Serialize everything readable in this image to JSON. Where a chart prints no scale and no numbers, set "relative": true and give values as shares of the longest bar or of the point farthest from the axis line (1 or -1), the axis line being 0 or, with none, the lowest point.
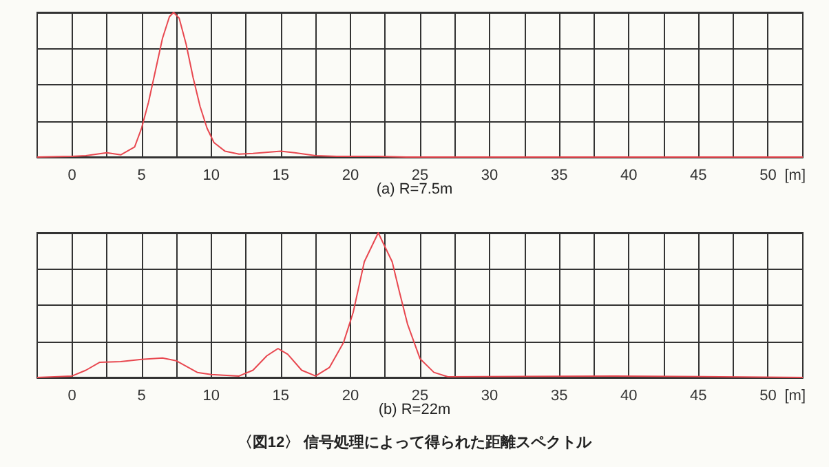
{
  "chart_data": [
    {
      "type": "line",
      "title": "(a) R=7.5m",
      "xlabel": "[m]",
      "relative": true,
      "grid": true,
      "marker": "none",
      "line_style": "solid",
      "xlim": [
        -2.5,
        52.5
      ],
      "xticks": [
        0,
        {
          "value": 2.5,
          "label": null
        },
        5,
        {
          "value": 7.5,
          "label": null
        },
        10,
        {
          "value": 12.5,
          "label": null
        },
        15,
        {
          "value": 17.5,
          "label": null
        },
        20,
        {
          "value": 22.5,
          "label": null
        },
        25,
        {
          "value": 27.5,
          "label": null
        },
        30,
        {
          "value": 32.5,
          "label": null
        },
        35,
        {
          "value": 37.5,
          "label": null
        },
        40,
        {
          "value": 42.5,
          "label": null
        },
        45,
        {
          "value": 47.5,
          "label": null
        },
        50
      ],
      "series": [
        {
          "color": "#e8474f",
          "x": [
            -2.5,
            0,
            1,
            2.5,
            3.5,
            4.5,
            5,
            5.5,
            6,
            6.5,
            7,
            7.3,
            7.7,
            8.2,
            8.7,
            9.2,
            9.7,
            10.2,
            11,
            12,
            13,
            15,
            16,
            17.5,
            19,
            22,
            24,
            52.5
          ],
          "values": [
            0,
            0.005,
            0.01,
            0.03,
            0.015,
            0.07,
            0.2,
            0.38,
            0.6,
            0.82,
            0.97,
            1,
            0.96,
            0.78,
            0.55,
            0.35,
            0.2,
            0.1,
            0.04,
            0.02,
            0.025,
            0.04,
            0.03,
            0.01,
            0.005,
            0.005,
            0,
            0
          ]
        }
      ]
    },
    {
      "type": "line",
      "title": "(b) R=22m",
      "xlabel": "[m]",
      "relative": true,
      "grid": true,
      "marker": "none",
      "line_style": "solid",
      "xlim": [
        -2.5,
        52.5
      ],
      "xticks": [
        0,
        {
          "value": 2.5,
          "label": null
        },
        5,
        {
          "value": 7.5,
          "label": null
        },
        10,
        {
          "value": 12.5,
          "label": null
        },
        15,
        {
          "value": 17.5,
          "label": null
        },
        20,
        {
          "value": 22.5,
          "label": null
        },
        25,
        {
          "value": 27.5,
          "label": null
        },
        30,
        {
          "value": 32.5,
          "label": null
        },
        35,
        {
          "value": 37.5,
          "label": null
        },
        40,
        {
          "value": 42.5,
          "label": null
        },
        45,
        {
          "value": 47.5,
          "label": null
        },
        50
      ],
      "annotations": [
        "〈図12〉 信号処理によって得られた距離スペクトル"
      ],
      "series": [
        {
          "color": "#e8474f",
          "x": [
            -2.5,
            0,
            1,
            2,
            3.5,
            5,
            6.5,
            7.5,
            9,
            10,
            12,
            13,
            14,
            14.8,
            15.5,
            16.5,
            17.5,
            18.5,
            19.5,
            20.2,
            21,
            22,
            23,
            23.5,
            24.1,
            25,
            26,
            27,
            39,
            52.5
          ],
          "values": [
            0,
            0.01,
            0.05,
            0.105,
            0.11,
            0.125,
            0.135,
            0.115,
            0.035,
            0.02,
            0.01,
            0.05,
            0.15,
            0.2,
            0.16,
            0.05,
            0.01,
            0.07,
            0.24,
            0.45,
            0.8,
            1,
            0.8,
            0.6,
            0.37,
            0.13,
            0.035,
            0.005,
            0.01,
            0
          ]
        }
      ]
    }
  ]
}
